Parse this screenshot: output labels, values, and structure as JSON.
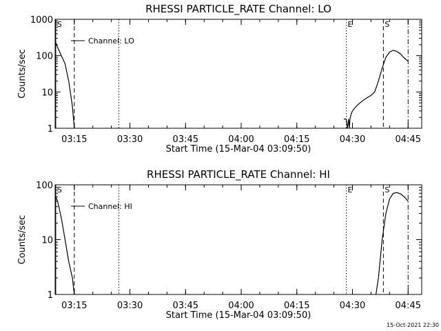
{
  "footer": {
    "timestamp": "15-Oct-2021 22:30"
  },
  "chart_data": [
    {
      "type": "line",
      "title": "RHESSI PARTICLE_RATE Channel: LO",
      "xlabel": "Start Time (15-Mar-04 03:09:50)",
      "ylabel": "Counts/sec",
      "yscale": "log",
      "ylim": [
        1,
        1000
      ],
      "xlim": [
        "03:09:50",
        "04:48:40"
      ],
      "x_ticks": [
        "03:15",
        "03:30",
        "03:45",
        "04:00",
        "04:15",
        "04:30",
        "04:45"
      ],
      "y_ticks": [
        "1",
        "10",
        "100",
        "1000"
      ],
      "legend": {
        "position": "top-left",
        "entries": [
          "Channel: LO"
        ]
      },
      "markers": [
        {
          "label": "S",
          "time": "03:10:00",
          "style": "solid"
        },
        {
          "label": "",
          "time": "03:15:00",
          "style": "dashed"
        },
        {
          "label": "",
          "time": "03:27:00",
          "style": "dotted"
        },
        {
          "label": "E",
          "time": "04:28:20",
          "style": "dotted"
        },
        {
          "label": "S",
          "time": "04:38:20",
          "style": "dashed"
        },
        {
          "label": "",
          "time": "04:45:00",
          "style": "dash-dot"
        }
      ],
      "series": [
        {
          "name": "Channel: LO",
          "segments": [
            {
              "x": [
                "03:09:50",
                "03:10:30",
                "03:11:30",
                "03:12:30",
                "03:13:30",
                "03:14:30",
                "03:15:00"
              ],
              "y": [
                250,
                170,
                100,
                60,
                20,
                4,
                1
              ]
            },
            {
              "x": [
                "04:27:40",
                "04:28:00",
                "04:28:20",
                "04:28:40",
                "04:29:00",
                "04:29:10",
                "04:29:20",
                "04:29:40",
                "04:30:00"
              ],
              "y": [
                1.8,
                1.8,
                1.8,
                1,
                1.8,
                1,
                1.8,
                2.5,
                3
              ]
            },
            {
              "x": [
                "04:30:00",
                "04:31:00",
                "04:32:00",
                "04:33:00",
                "04:34:00",
                "04:35:00",
                "04:36:00",
                "04:37:00",
                "04:38:00",
                "04:39:00",
                "04:40:00",
                "04:41:00",
                "04:42:00",
                "04:43:00",
                "04:44:00",
                "04:45:00"
              ],
              "y": [
                3,
                4,
                5,
                6,
                7,
                8,
                10,
                20,
                45,
                90,
                125,
                140,
                130,
                110,
                85,
                70
              ]
            }
          ]
        }
      ]
    },
    {
      "type": "line",
      "title": "RHESSI PARTICLE_RATE Channel: HI",
      "xlabel": "Start Time (15-Mar-04 03:09:50)",
      "ylabel": "Counts/sec",
      "yscale": "log",
      "ylim": [
        1,
        100
      ],
      "xlim": [
        "03:09:50",
        "04:48:40"
      ],
      "x_ticks": [
        "03:15",
        "03:30",
        "03:45",
        "04:00",
        "04:15",
        "04:30",
        "04:45"
      ],
      "y_ticks": [
        "1",
        "10",
        "100"
      ],
      "legend": {
        "position": "top-left",
        "entries": [
          "Channel: HI"
        ]
      },
      "markers": [
        {
          "label": "S",
          "time": "03:10:00",
          "style": "solid"
        },
        {
          "label": "",
          "time": "03:15:00",
          "style": "dashed"
        },
        {
          "label": "",
          "time": "03:27:00",
          "style": "dotted"
        },
        {
          "label": "E",
          "time": "04:28:20",
          "style": "dotted"
        },
        {
          "label": "S",
          "time": "04:38:20",
          "style": "dashed"
        },
        {
          "label": "",
          "time": "04:45:00",
          "style": "dash-dot"
        }
      ],
      "series": [
        {
          "name": "Channel: HI",
          "segments": [
            {
              "x": [
                "03:09:50",
                "03:10:30",
                "03:11:30",
                "03:12:30",
                "03:13:30",
                "03:14:30",
                "03:15:00"
              ],
              "y": [
                65,
                50,
                25,
                10,
                4,
                2,
                1
              ]
            },
            {
              "x": [
                "04:36:20",
                "04:37:00",
                "04:38:00",
                "04:39:00",
                "04:40:00",
                "04:41:00",
                "04:42:00",
                "04:43:00",
                "04:44:00",
                "04:45:00"
              ],
              "y": [
                1,
                2,
                10,
                30,
                55,
                70,
                72,
                68,
                60,
                50
              ]
            }
          ]
        }
      ]
    }
  ]
}
